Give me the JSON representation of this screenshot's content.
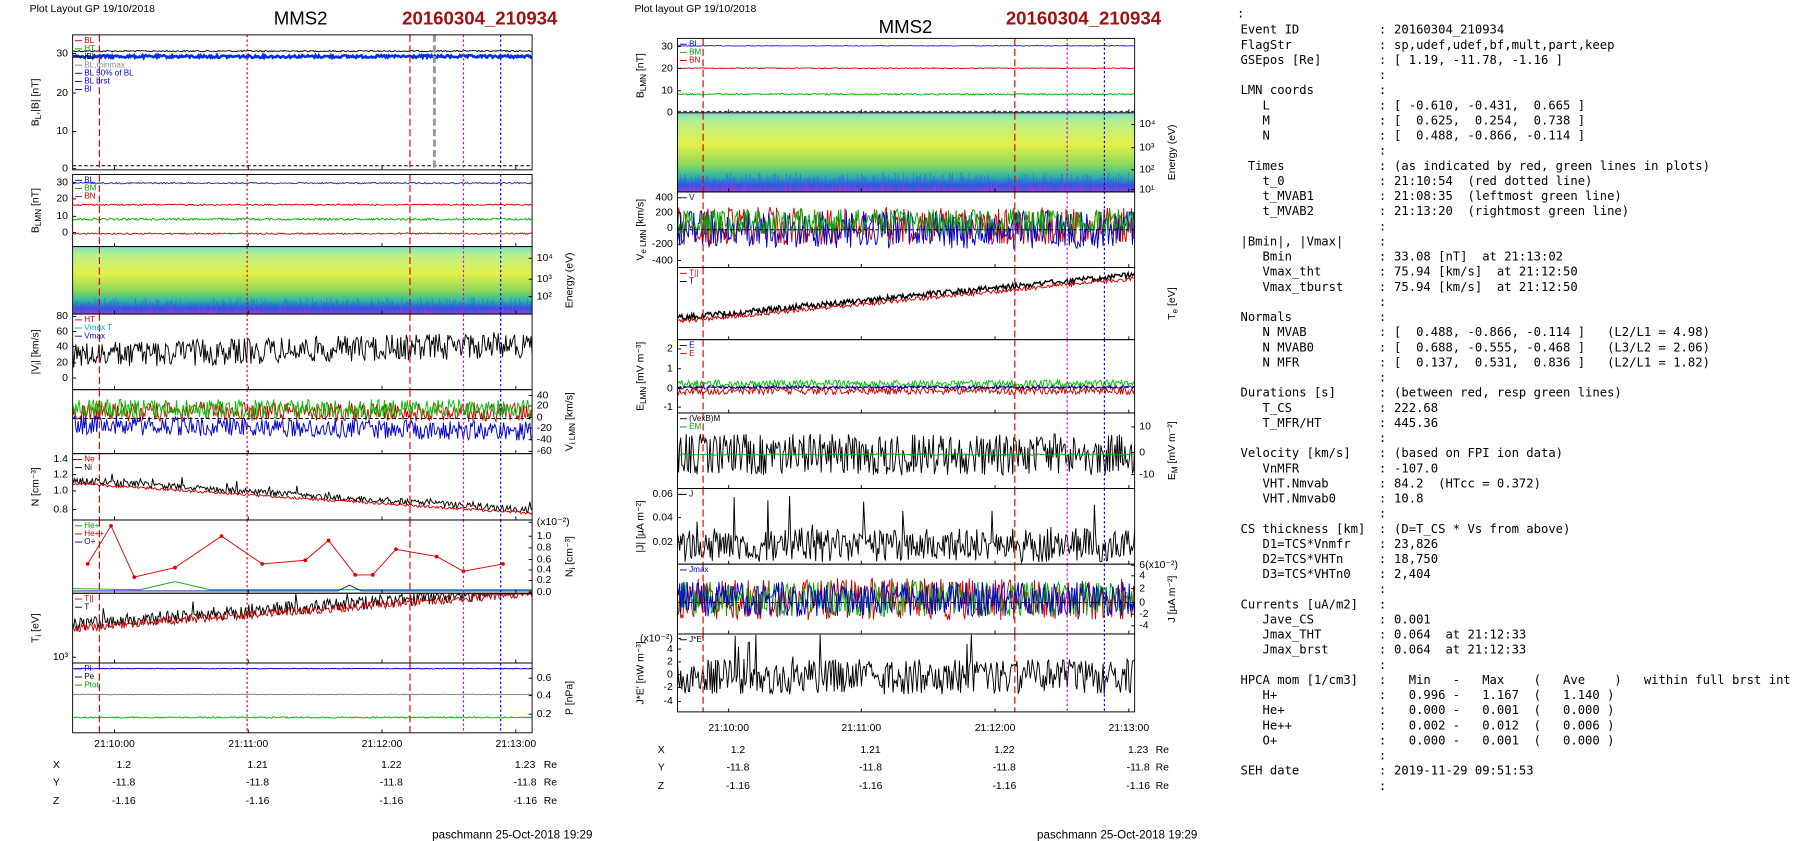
{
  "plots": [
    {
      "header": "Plot Layout GP 19/10/2018",
      "title": "MMS2",
      "event": "20160304_210934",
      "panels": [
        {
          "ylabel": [
            "B",
            "L",
            ",|B| [nT]"
          ],
          "yticks": [
            "30",
            "20",
            "10",
            "0"
          ],
          "side": "left",
          "legend": [
            {
              "text": "BL",
              "color": "#d00000"
            },
            {
              "text": "HT",
              "color": "#00a000"
            },
            {
              "text": "|B|",
              "color": "#000000"
            },
            {
              "text": "BL,minmax",
              "color": "#888888"
            },
            {
              "text": "BL 50% of BL",
              "color": "#0000cc"
            },
            {
              "text": "BL brst",
              "color": "#0000cc"
            },
            {
              "text": "Bl",
              "color": "#0000cc"
            }
          ]
        },
        {
          "ylabel": [
            "B",
            "LMN",
            " [nT]"
          ],
          "yticks": [
            "30",
            "20",
            "10",
            "0"
          ],
          "side": "left",
          "legend": [
            {
              "text": "BL",
              "color": "#0000cc"
            },
            {
              "text": "BM",
              "color": "#00a000"
            },
            {
              "text": "BN",
              "color": "#d00000"
            }
          ]
        },
        {
          "ylabel": [
            "Energy (eV)"
          ],
          "yticks": [
            "10⁴",
            "10³",
            "10²"
          ],
          "side": "right",
          "legend": []
        },
        {
          "ylabel": [
            "|V",
            "i",
            "| [km/s]"
          ],
          "yticks": [
            "80",
            "60",
            "40",
            "20",
            "0"
          ],
          "side": "left",
          "legend": [
            {
              "text": "HT",
              "color": "#d00000"
            },
            {
              "text": "Vmax T",
              "color": "#00aacc"
            },
            {
              "text": "Vmax",
              "color": "#0000cc"
            }
          ]
        },
        {
          "ylabel": [
            "V",
            "i LMN",
            " [km/s]"
          ],
          "yticks": [
            "40",
            "20",
            "0",
            "-20",
            "-40",
            "-60"
          ],
          "side": "right",
          "legend": []
        },
        {
          "ylabel": [
            "N [cm⁻³]"
          ],
          "yticks": [
            "1.4",
            "1.2",
            "1.0",
            "0.8"
          ],
          "side": "left",
          "legend": [
            {
              "text": "Ne",
              "color": "#d00000"
            },
            {
              "text": "Ni",
              "color": "#000000"
            }
          ]
        },
        {
          "ylabel": [
            "N",
            "i",
            " [cm⁻³]"
          ],
          "yticks": [
            "(x10⁻²)",
            "1.0",
            "0.8",
            "0.6",
            "0.4",
            "0.2",
            "0.0"
          ],
          "side": "right",
          "legend": [
            {
              "text": "He+",
              "color": "#00a000"
            },
            {
              "text": "He++",
              "color": "#d00000"
            },
            {
              "text": "O+",
              "color": "#0000cc"
            }
          ]
        },
        {
          "ylabel": [
            "T",
            "i",
            " [eV]"
          ],
          "yticks": [
            "10³"
          ],
          "side": "left",
          "legend": [
            {
              "text": "T||",
              "color": "#d00000"
            },
            {
              "text": "T",
              "color": "#000000"
            }
          ]
        },
        {
          "ylabel": [
            "P [nPa]"
          ],
          "yticks": [
            "0.6",
            "0.4",
            "0.2"
          ],
          "side": "right",
          "legend": [
            {
              "text": "Pi",
              "color": "#0000cc"
            },
            {
              "text": "Pe",
              "color": "#000000"
            },
            {
              "text": "Ptot",
              "color": "#00a000"
            }
          ]
        }
      ],
      "xticks": [
        "21:10:00",
        "21:11:00",
        "21:12:00",
        "21:13:00"
      ],
      "ephemeris": [
        {
          "name": "X",
          "values": [
            "1.2",
            "1.21",
            "1.22",
            "1.23"
          ],
          "unit": "Re"
        },
        {
          "name": "Y",
          "values": [
            "-11.8",
            "-11.8",
            "-11.8",
            "-11.8"
          ],
          "unit": "Re"
        },
        {
          "name": "Z",
          "values": [
            "-1.16",
            "-1.16",
            "-1.16",
            "-1.16"
          ],
          "unit": "Re"
        }
      ],
      "footer": "paschmann 25-Oct-2018 19:29"
    },
    {
      "header": "Plot layout GP 19/10/2018",
      "title": "MMS2",
      "event": "20160304_210934",
      "panels": [
        {
          "ylabel": [
            "B",
            "LMN",
            " [nT]"
          ],
          "yticks": [
            "30",
            "20",
            "10",
            "0"
          ],
          "side": "left",
          "legend": [
            {
              "text": "BL",
              "color": "#0000cc"
            },
            {
              "text": "BM",
              "color": "#00a000"
            },
            {
              "text": "BN",
              "color": "#d00000"
            }
          ]
        },
        {
          "ylabel": [
            "Energy (eV)"
          ],
          "yticks": [
            "10⁴",
            "10³",
            "10²",
            "10¹"
          ],
          "side": "right",
          "legend": []
        },
        {
          "ylabel": [
            "V",
            "e LMN",
            " [km/s]"
          ],
          "yticks": [
            "400",
            "200",
            "0",
            "-200",
            "-400"
          ],
          "side": "left",
          "legend": [
            {
              "text": "V",
              "color": "#0000cc"
            }
          ]
        },
        {
          "ylabel": [
            "T",
            "e",
            " [eV]"
          ],
          "yticks": [],
          "side": "right",
          "legend": [
            {
              "text": "T||",
              "color": "#d00000"
            },
            {
              "text": "T",
              "color": "#000000"
            }
          ]
        },
        {
          "ylabel": [
            "E",
            "LMN",
            " [mV m⁻³]"
          ],
          "yticks": [
            "2",
            "1",
            "0",
            "-1"
          ],
          "side": "left",
          "legend": [
            {
              "text": "E",
              "color": "#0000cc"
            },
            {
              "text": "E",
              "color": "#d00000"
            }
          ]
        },
        {
          "ylabel": [
            "E",
            "M",
            " [mV m⁻²]"
          ],
          "yticks": [
            "10",
            "0",
            "-10"
          ],
          "side": "right",
          "legend": [
            {
              "text": "(VexB)M",
              "color": "#000000"
            },
            {
              "text": "EM",
              "color": "#00a000"
            }
          ]
        },
        {
          "ylabel": [
            "|J| [µA m⁻²]"
          ],
          "yticks": [
            "0.06",
            "0.04",
            "0.02"
          ],
          "side": "left",
          "legend": [
            {
              "text": "J",
              "color": "#000000"
            }
          ]
        },
        {
          "ylabel": [
            "J [µA m⁻²]"
          ],
          "yticks": [
            "6(x10⁻²)",
            "4",
            "2",
            "0",
            "-2",
            "-4"
          ],
          "side": "right",
          "legend": [
            {
              "text": "Jmax",
              "color": "#0000cc"
            }
          ]
        },
        {
          "ylabel": [
            "J*E' [nW m⁻³]"
          ],
          "yticks": [
            "(x10⁻²)",
            "4",
            "2",
            "0",
            "-2",
            "-4"
          ],
          "side": "left",
          "legend": [
            {
              "text": "J*E'",
              "color": "#000000"
            }
          ]
        }
      ],
      "xticks": [
        "21:10:00",
        "21:11:00",
        "21:12:00",
        "21:13:00"
      ],
      "ephemeris": [
        {
          "name": "X",
          "values": [
            "1.2",
            "1.21",
            "1.22",
            "1.23"
          ],
          "unit": "Re"
        },
        {
          "name": "Y",
          "values": [
            "-11.8",
            "-11.8",
            "-11.8",
            "-11.8"
          ],
          "unit": "Re"
        },
        {
          "name": "Z",
          "values": [
            "-1.16",
            "-1.16",
            "-1.16",
            "-1.16"
          ],
          "unit": "Re"
        }
      ],
      "footer": "paschmann 25-Oct-2018 19:29"
    }
  ],
  "info": {
    "separator": ":",
    "sections": [
      [
        {
          "key": "Event ID",
          "value": "20160304_210934"
        },
        {
          "key": "FlagStr",
          "value": "sp,udef,udef,bf,mult,part,keep"
        },
        {
          "key": "GSEpos [Re]",
          "value": "[ 1.19, -11.78, -1.16 ]"
        }
      ],
      [
        {
          "key": "LMN coords"
        },
        {
          "key": "   L",
          "value": "[ -0.610, -0.431,  0.665 ]"
        },
        {
          "key": "   M",
          "value": "[  0.625,  0.254,  0.738 ]"
        },
        {
          "key": "   N",
          "value": "[  0.488, -0.866, -0.114 ]"
        }
      ],
      [
        {
          "key": " Times",
          "value": "(as indicated by red, green lines in plots)"
        },
        {
          "key": "   t_0",
          "value": "21:10:54  (red dotted line)"
        },
        {
          "key": "   t_MVAB1",
          "value": "21:08:35  (leftmost green line)"
        },
        {
          "key": "   t_MVAB2",
          "value": "21:13:20  (rightmost green line)"
        }
      ],
      [
        {
          "key": "|Bmin|, |Vmax|"
        },
        {
          "key": "   Bmin",
          "value": "33.08 [nT]  at 21:13:02"
        },
        {
          "key": "   Vmax_tht",
          "value": "75.94 [km/s]  at 21:12:50"
        },
        {
          "key": "   Vmax_tburst",
          "value": "75.94 [km/s]  at 21:12:50"
        }
      ],
      [
        {
          "key": "Normals"
        },
        {
          "key": "   N MVAB",
          "value": "[  0.488, -0.866, -0.114 ]   (L2/L1 = 4.98)"
        },
        {
          "key": "   N MVAB0",
          "value": "[  0.688, -0.555, -0.468 ]   (L3/L2 = 2.06)"
        },
        {
          "key": "   N MFR",
          "value": "[  0.137,  0.531,  0.836 ]   (L2/L1 = 1.82)"
        }
      ],
      [
        {
          "key": "Durations [s]",
          "value": "(between red, resp green lines)"
        },
        {
          "key": "   T_CS",
          "value": "222.68"
        },
        {
          "key": "   T_MFR/HT",
          "value": "445.36"
        }
      ],
      [
        {
          "key": "Velocity [km/s]",
          "value": "(based on FPI ion data)"
        },
        {
          "key": "   VnMFR",
          "value": "-107.0"
        },
        {
          "key": "   VHT.Nmvab",
          "value": "84.2  (HTcc = 0.372)"
        },
        {
          "key": "   VHT.Nmvab0",
          "value": "10.8"
        }
      ],
      [
        {
          "key": "CS thickness [km]",
          "value": "(D=T_CS * Vs from above)"
        },
        {
          "key": "   D1=TCS*Vnmfr",
          "value": "23,826"
        },
        {
          "key": "   D2=TCS*VHTn",
          "value": "18,750"
        },
        {
          "key": "   D3=TCS*VHTn0",
          "value": "2,404"
        }
      ],
      [
        {
          "key": "Currents [uA/m2]"
        },
        {
          "key": "   Jave_CS",
          "value": "0.001"
        },
        {
          "key": "   Jmax_THT",
          "value": "0.064  at 21:12:33"
        },
        {
          "key": "   Jmax_brst",
          "value": "0.064  at 21:12:33"
        }
      ],
      [
        {
          "key": "HPCA mom [1/cm3]",
          "value": "  Min   -   Max    (   Ave    )   within full brst int"
        },
        {
          "key": "   H+",
          "value": "  0.996 -   1.167  (   1.140 )"
        },
        {
          "key": "   He+",
          "value": "  0.000 -   0.001  (   0.000 )"
        },
        {
          "key": "   He++",
          "value": "  0.002 -   0.012  (   0.006 )"
        },
        {
          "key": "   O+",
          "value": "  0.000 -   0.001  (   0.000 )"
        }
      ],
      [
        {
          "key": "SEH date",
          "value": "2019-11-29 09:51:53"
        }
      ]
    ]
  }
}
